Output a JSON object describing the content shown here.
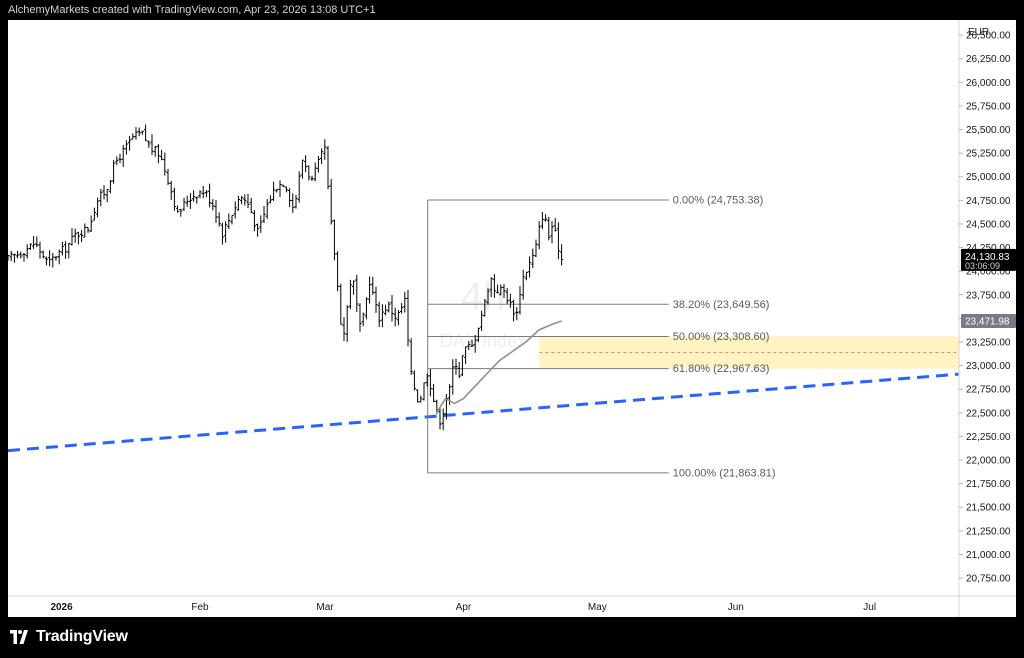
{
  "header": {
    "attribution": "AlchemyMarkets created with TradingView.com, Apr 23, 2026 13:08 UTC+1"
  },
  "footer": {
    "brand": "TradingView",
    "logo_icon": "tradingview-logo-icon"
  },
  "watermark": {
    "interval": "4h",
    "symbol": "DAX Index"
  },
  "colors": {
    "bars": "#000000",
    "grid": "#ffffff",
    "fib_line": "#787b86",
    "zone_fill": "#fff3c2",
    "zone_mid": "#e57373",
    "trendline": "#2962ff",
    "ma_line": "#909090",
    "price_badge": "#000000",
    "ma_badge": "#787b86"
  },
  "chart_data": {
    "type": "ohlc",
    "currency": "EUR",
    "y_ticks": [
      26500,
      26250,
      26000,
      25750,
      25500,
      25250,
      25000,
      24750,
      24500,
      24250,
      24000,
      23750,
      23500,
      23250,
      23000,
      22750,
      22500,
      22250,
      22000,
      21750,
      21500,
      21250,
      21000,
      20750
    ],
    "y_tick_labels": [
      "26,500.00",
      "26,250.00",
      "26,000.00",
      "25,750.00",
      "25,500.00",
      "25,250.00",
      "25,000.00",
      "24,750.00",
      "24,500.00",
      "24,250.00",
      "24,000.00",
      "23,750.00",
      "23,500.00",
      "23,250.00",
      "23,000.00",
      "22,750.00",
      "22,500.00",
      "22,250.00",
      "22,000.00",
      "21,750.00",
      "21,500.00",
      "21,250.00",
      "21,000.00",
      "20,750.00"
    ],
    "ylim": [
      20560,
      26660
    ],
    "x_labels": [
      "2026",
      "Feb",
      "Mar",
      "Apr",
      "May",
      "Jun",
      "Jul"
    ],
    "x_label_dates": [
      "2026-01-01",
      "2026-02-01",
      "2026-03-01",
      "2026-04-01",
      "2026-05-01",
      "2026-06-01",
      "2026-07-01"
    ],
    "xlim": [
      "2025-12-20",
      "2026-07-21"
    ],
    "last_price": {
      "value": "24,130.83",
      "countdown": "03:06:09"
    },
    "ma_last": {
      "value": "23,471.98"
    },
    "close_path": [
      [
        "2025-12-20",
        24130
      ],
      [
        "2025-12-23",
        24200
      ],
      [
        "2025-12-26",
        24300
      ],
      [
        "2025-12-29",
        24080
      ],
      [
        "2025-12-31",
        24180
      ],
      [
        "2026-01-02",
        24250
      ],
      [
        "2026-01-04",
        24380
      ],
      [
        "2026-01-07",
        24460
      ],
      [
        "2026-01-09",
        24750
      ],
      [
        "2026-01-11",
        24860
      ],
      [
        "2026-01-13",
        25150
      ],
      [
        "2026-01-15",
        25280
      ],
      [
        "2026-01-17",
        25420
      ],
      [
        "2026-01-19",
        25460
      ],
      [
        "2026-01-21",
        25300
      ],
      [
        "2026-01-23",
        25240
      ],
      [
        "2026-01-25",
        24950
      ],
      [
        "2026-01-27",
        24600
      ],
      [
        "2026-01-29",
        24750
      ],
      [
        "2026-01-31",
        24820
      ],
      [
        "2026-02-02",
        24850
      ],
      [
        "2026-02-04",
        24700
      ],
      [
        "2026-02-06",
        24400
      ],
      [
        "2026-02-08",
        24600
      ],
      [
        "2026-02-10",
        24800
      ],
      [
        "2026-02-12",
        24700
      ],
      [
        "2026-02-14",
        24400
      ],
      [
        "2026-02-16",
        24700
      ],
      [
        "2026-02-18",
        24900
      ],
      [
        "2026-02-20",
        24950
      ],
      [
        "2026-02-22",
        24650
      ],
      [
        "2026-02-24",
        25200
      ],
      [
        "2026-02-26",
        24950
      ],
      [
        "2026-02-28",
        25200
      ],
      [
        "2026-03-01",
        25300
      ],
      [
        "2026-03-02",
        24650
      ],
      [
        "2026-03-03",
        24250
      ],
      [
        "2026-03-05",
        23250
      ],
      [
        "2026-03-07",
        24000
      ],
      [
        "2026-03-09",
        23350
      ],
      [
        "2026-03-11",
        23900
      ],
      [
        "2026-03-13",
        23500
      ],
      [
        "2026-03-15",
        23650
      ],
      [
        "2026-03-17",
        23500
      ],
      [
        "2026-03-19",
        23700
      ],
      [
        "2026-03-20",
        22950
      ],
      [
        "2026-03-22",
        22600
      ],
      [
        "2026-03-24",
        22950
      ],
      [
        "2026-03-25",
        22700
      ],
      [
        "2026-03-26",
        22500
      ],
      [
        "2026-03-27",
        22400
      ],
      [
        "2026-03-28",
        22650
      ],
      [
        "2026-03-29",
        22750
      ],
      [
        "2026-03-30",
        23100
      ],
      [
        "2026-03-31",
        22900
      ],
      [
        "2026-04-01",
        23150
      ],
      [
        "2026-04-02",
        23200
      ],
      [
        "2026-04-03",
        23200
      ],
      [
        "2026-04-06",
        23700
      ],
      [
        "2026-04-07",
        23950
      ],
      [
        "2026-04-08",
        23800
      ],
      [
        "2026-04-10",
        23800
      ],
      [
        "2026-04-12",
        23600
      ],
      [
        "2026-04-13",
        23550
      ],
      [
        "2026-04-14",
        23900
      ],
      [
        "2026-04-15",
        24000
      ],
      [
        "2026-04-17",
        24200
      ],
      [
        "2026-04-18",
        24450
      ],
      [
        "2026-04-19",
        24650
      ],
      [
        "2026-04-20",
        24350
      ],
      [
        "2026-04-21",
        24500
      ],
      [
        "2026-04-22",
        24300
      ],
      [
        "2026-04-23",
        24130
      ]
    ],
    "moving_average": [
      [
        "2026-03-26",
        22500
      ],
      [
        "2026-03-28",
        22650
      ],
      [
        "2026-03-30",
        22600
      ],
      [
        "2026-04-01",
        22650
      ],
      [
        "2026-04-03",
        22750
      ],
      [
        "2026-04-06",
        22900
      ],
      [
        "2026-04-09",
        23050
      ],
      [
        "2026-04-12",
        23150
      ],
      [
        "2026-04-15",
        23250
      ],
      [
        "2026-04-18",
        23380
      ],
      [
        "2026-04-21",
        23440
      ],
      [
        "2026-04-23",
        23472
      ]
    ],
    "fibonacci": {
      "start": "2026-03-24",
      "end": "2026-05-17",
      "zone_start": "2026-04-18",
      "zone_end": "2026-07-21",
      "levels": [
        {
          "ratio_label": "0.00%",
          "value": 24753.38,
          "label": "0.00% (24,753.38)"
        },
        {
          "ratio_label": "38.20%",
          "value": 23649.56,
          "label": "38.20% (23,649.56)"
        },
        {
          "ratio_label": "50.00%",
          "value": 23308.6,
          "label": "50.00% (23,308.60)"
        },
        {
          "ratio_label": "61.80%",
          "value": 22967.63,
          "label": "61.80% (22,967.63)"
        },
        {
          "ratio_label": "100.00%",
          "value": 21863.81,
          "label": "100.00% (21,863.81)"
        }
      ]
    },
    "trendline": {
      "from": [
        "2025-12-20",
        22100
      ],
      "to": [
        "2026-07-21",
        22910
      ]
    },
    "grid": false,
    "legend": "none"
  }
}
